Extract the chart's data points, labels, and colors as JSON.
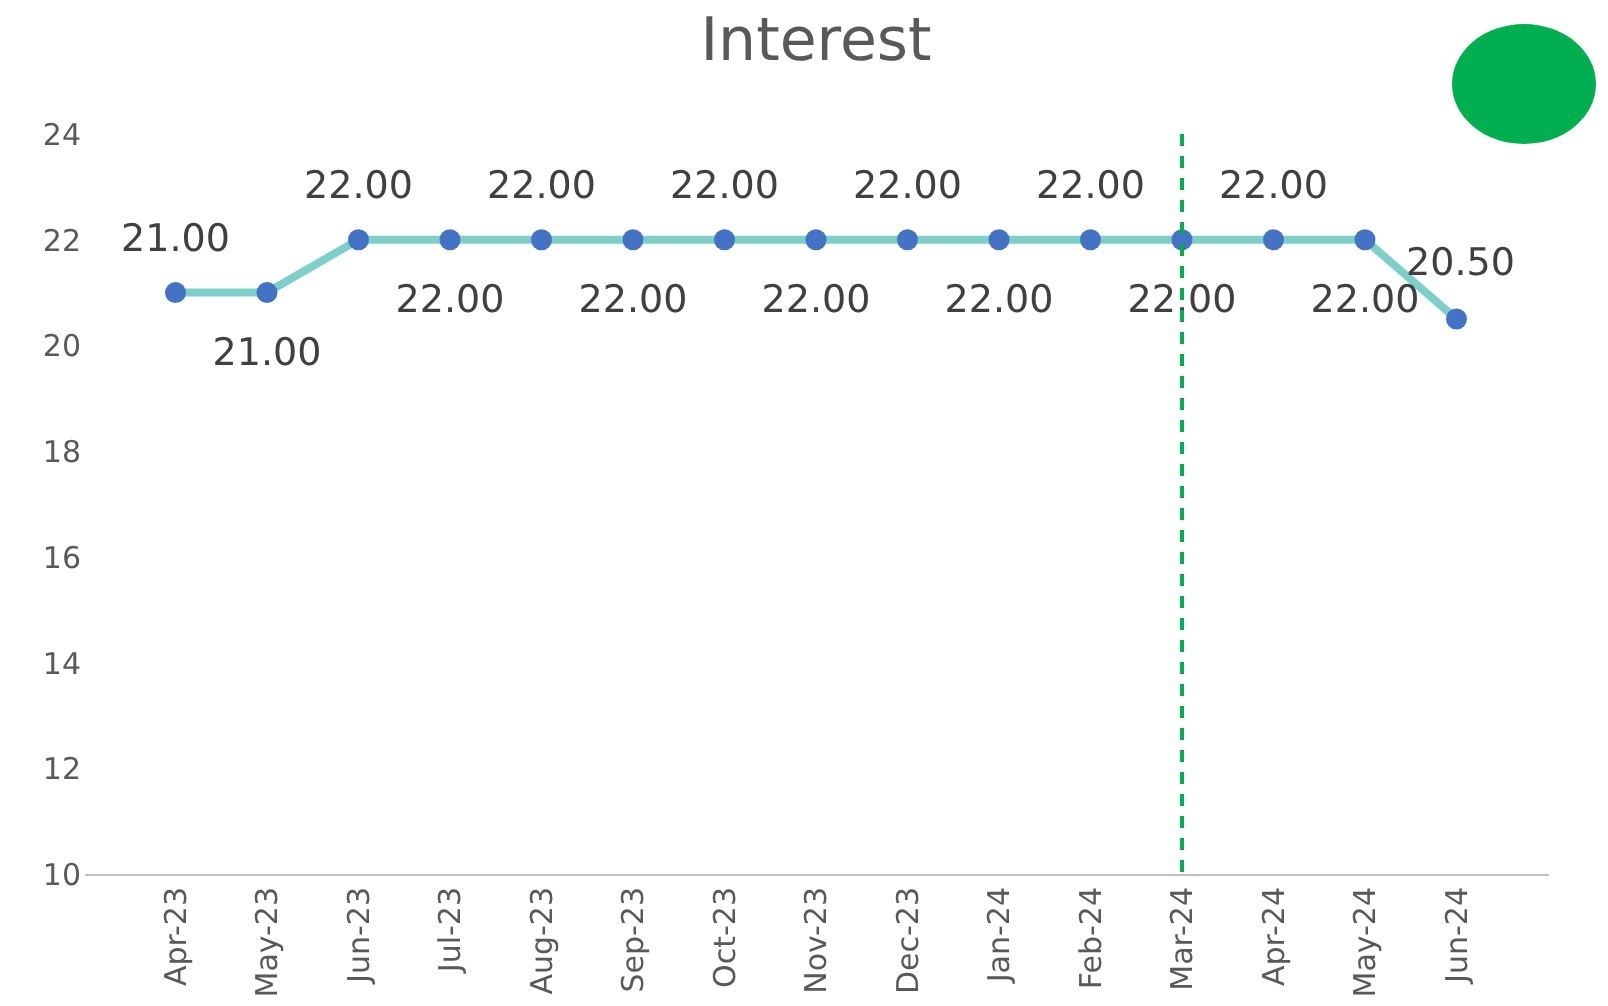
{
  "chart_data": {
    "type": "line",
    "title": "Interest",
    "categories": [
      "Apr-23",
      "May-23",
      "Jun-23",
      "Jul-23",
      "Aug-23",
      "Sep-23",
      "Oct-23",
      "Nov-23",
      "Dec-23",
      "Jan-24",
      "Feb-24",
      "Mar-24",
      "Apr-24",
      "May-24",
      "Jun-24"
    ],
    "series": [
      {
        "color": "#7fcfc9",
        "values": [
          21,
          21,
          22,
          22,
          22,
          22,
          22,
          22,
          22,
          22,
          22,
          22,
          22,
          22,
          20.5
        ],
        "value_labels": [
          "21.00",
          "21.00",
          "22.00",
          "22.00",
          "22.00",
          "22.00",
          "22.00",
          "22.00",
          "22.00",
          "22.00",
          "22.00",
          "22.00",
          "22.00",
          "22.00",
          "20.50"
        ]
      }
    ],
    "ylim": [
      10,
      24
    ],
    "yticks": [
      10,
      12,
      14,
      16,
      18,
      20,
      22,
      24
    ],
    "grid": false,
    "marker": "circle",
    "line_style": "solid",
    "ref_lines": [
      {
        "axis": "x",
        "value": "Mar-24",
        "color": "#00b050",
        "line_style": "dashed"
      }
    ]
  }
}
